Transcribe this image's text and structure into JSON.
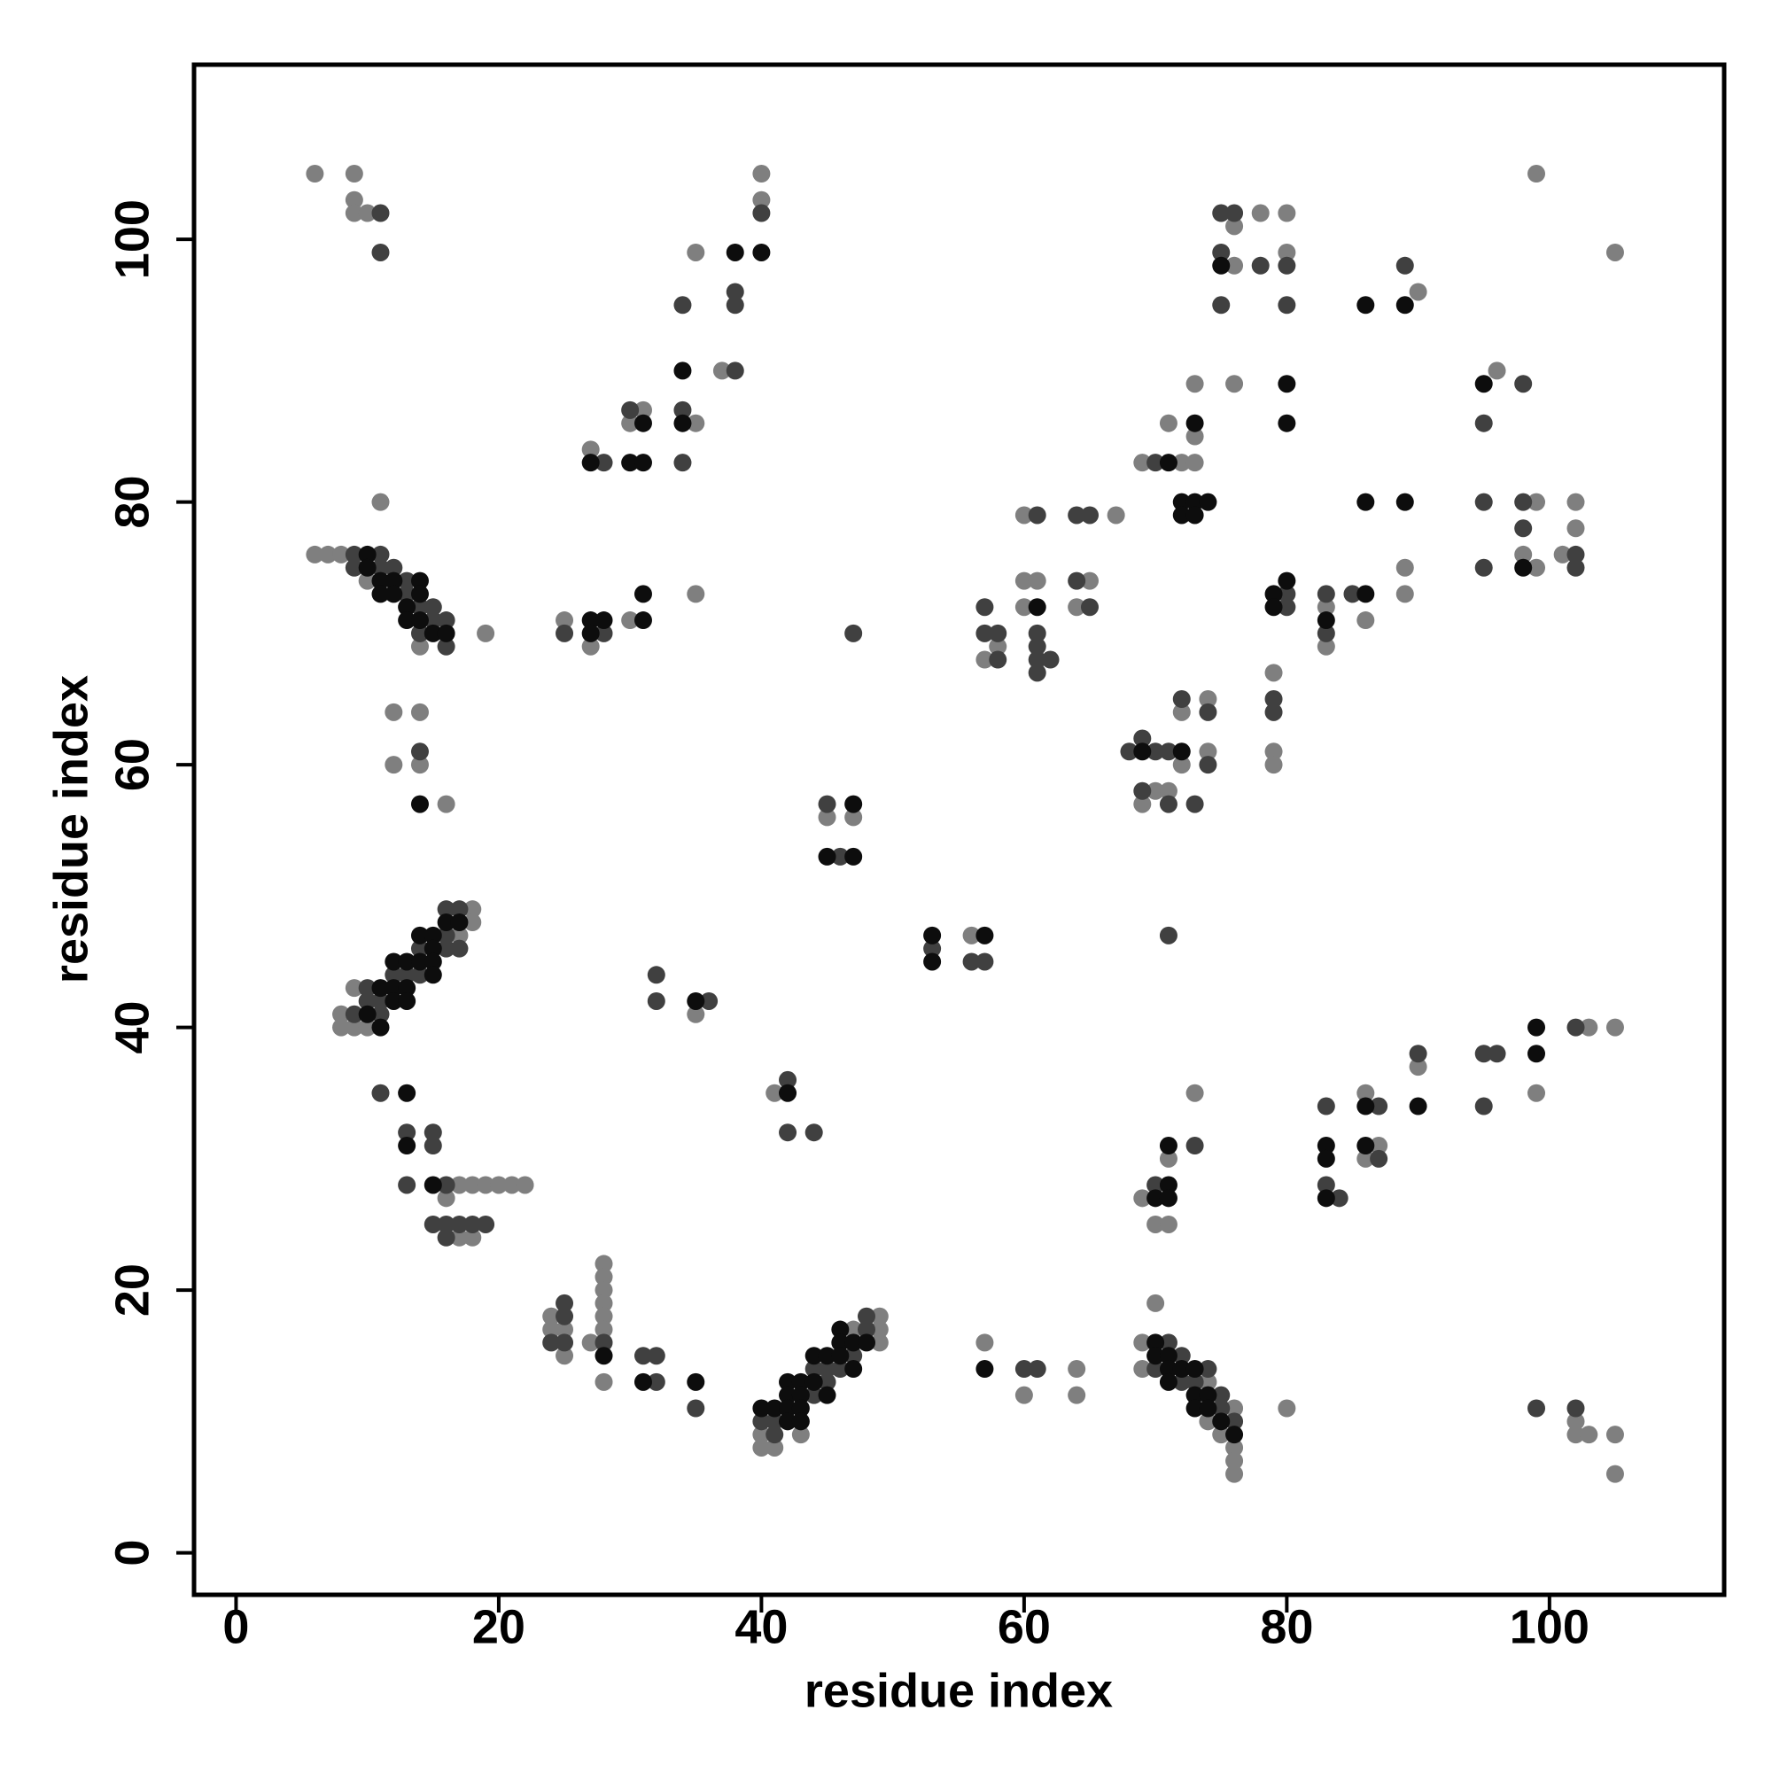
{
  "chart_data": {
    "type": "scatter",
    "x_label": "residue index",
    "y_label": "residue index",
    "xlim": [
      -3.2,
      113.3
    ],
    "ylim": [
      -3.2,
      113.3
    ],
    "xticks": [
      0,
      20,
      40,
      60,
      80,
      100
    ],
    "yticks": [
      0,
      20,
      40,
      60,
      80,
      100
    ],
    "grid": false,
    "series": [
      {
        "color": "#7f7f7f",
        "x": [
          6,
          9,
          9,
          9,
          10,
          11,
          6,
          7,
          8,
          10,
          14,
          19,
          12,
          14,
          12,
          14,
          16,
          8,
          8,
          9,
          9,
          10,
          17,
          18,
          18,
          16,
          17,
          18,
          19,
          20,
          21,
          22,
          17,
          18,
          24,
          24,
          25,
          25,
          27,
          28,
          28,
          28,
          28,
          28,
          28,
          28,
          25,
          27,
          30,
          35,
          27,
          30,
          31,
          35,
          35,
          37,
          40,
          40,
          35,
          41,
          40,
          40,
          41,
          43,
          47,
          49,
          49,
          49,
          45,
          47,
          56,
          57,
          60,
          64,
          64,
          58,
          57,
          60,
          60,
          61,
          60,
          67,
          65,
          64,
          72,
          74,
          74,
          72,
          70,
          71,
          69,
          69,
          72,
          73,
          71,
          73,
          73,
          76,
          76,
          76,
          78,
          80,
          80,
          79,
          79,
          79,
          80,
          83,
          83,
          86,
          90,
          89,
          89,
          96,
          99,
          98,
          99,
          101,
          102,
          102,
          99,
          105,
          86,
          87,
          86,
          90,
          99,
          103,
          105,
          69,
          70,
          71,
          71,
          73,
          69,
          69,
          70,
          74,
          74,
          75,
          76,
          76,
          76,
          76,
          102,
          102,
          103,
          105,
          105
        ],
        "y": [
          105,
          105,
          103,
          102,
          102,
          80,
          76,
          76,
          76,
          74,
          69,
          70,
          64,
          64,
          60,
          60,
          57,
          41,
          40,
          40,
          43,
          40,
          47,
          49,
          48,
          27,
          28,
          28,
          28,
          28,
          28,
          28,
          24,
          24,
          18,
          17,
          17,
          15,
          16,
          22,
          21,
          20,
          19,
          18,
          17,
          13,
          71,
          69,
          71,
          73,
          84,
          86,
          87,
          86,
          99,
          90,
          103,
          105,
          41,
          35,
          9,
          8,
          8,
          9,
          17,
          18,
          17,
          16,
          56,
          56,
          47,
          16,
          12,
          14,
          12,
          69,
          68,
          79,
          74,
          74,
          72,
          79,
          74,
          72,
          60,
          61,
          65,
          64,
          58,
          58,
          57,
          83,
          83,
          83,
          86,
          85,
          89,
          89,
          101,
          98,
          102,
          102,
          99,
          67,
          61,
          60,
          11,
          72,
          69,
          71,
          96,
          75,
          73,
          90,
          80,
          76,
          75,
          76,
          80,
          78,
          105,
          99,
          35,
          31,
          30,
          37,
          35,
          40,
          40,
          27,
          25,
          25,
          30,
          35,
          16,
          14,
          19,
          13,
          10,
          9,
          11,
          8,
          7,
          6,
          10,
          9,
          9,
          9,
          6
        ]
      },
      {
        "color": "#404040",
        "x": [
          11,
          11,
          9,
          11,
          9,
          11,
          12,
          13,
          13,
          14,
          15,
          15,
          14,
          16,
          16,
          14,
          9,
          10,
          10,
          11,
          11,
          12,
          13,
          14,
          14,
          16,
          16,
          16,
          17,
          17,
          11,
          13,
          15,
          15,
          13,
          16,
          15,
          16,
          17,
          18,
          19,
          16,
          24,
          25,
          25,
          25,
          28,
          31,
          32,
          32,
          35,
          25,
          28,
          28,
          30,
          34,
          34,
          34,
          38,
          38,
          38,
          40,
          32,
          32,
          36,
          42,
          42,
          44,
          40,
          41,
          41,
          44,
          44,
          45,
          45,
          46,
          47,
          48,
          48,
          47,
          45,
          46,
          53,
          56,
          57,
          60,
          61,
          57,
          57,
          58,
          58,
          61,
          61,
          61,
          61,
          62,
          61,
          64,
          65,
          64,
          65,
          68,
          69,
          70,
          71,
          74,
          72,
          74,
          69,
          71,
          73,
          71,
          70,
          75,
          76,
          75,
          75,
          78,
          80,
          80,
          80,
          80,
          79,
          79,
          83,
          83,
          85,
          89,
          98,
          95,
          95,
          98,
          98,
          102,
          102,
          95,
          83,
          83,
          84,
          87,
          87,
          90,
          95,
          96,
          95,
          102,
          70,
          73,
          70,
          71,
          72,
          72,
          73,
          74,
          75,
          75,
          76,
          99,
          102
        ],
        "y": [
          102,
          99,
          76,
          76,
          75,
          75,
          75,
          74,
          73,
          72,
          72,
          71,
          70,
          71,
          69,
          61,
          41,
          43,
          42,
          42,
          41,
          44,
          44,
          46,
          44,
          49,
          47,
          46,
          49,
          46,
          35,
          32,
          32,
          31,
          28,
          28,
          25,
          25,
          25,
          25,
          25,
          24,
          16,
          19,
          18,
          16,
          16,
          15,
          15,
          13,
          11,
          70,
          70,
          83,
          87,
          87,
          83,
          95,
          90,
          95,
          96,
          102,
          44,
          42,
          42,
          36,
          32,
          32,
          10,
          10,
          9,
          12,
          14,
          14,
          13,
          14,
          15,
          18,
          17,
          70,
          57,
          53,
          46,
          45,
          45,
          14,
          14,
          72,
          70,
          70,
          68,
          79,
          70,
          69,
          68,
          68,
          67,
          79,
          79,
          74,
          72,
          61,
          62,
          61,
          61,
          60,
          65,
          64,
          58,
          57,
          57,
          47,
          83,
          102,
          102,
          99,
          95,
          98,
          98,
          95,
          73,
          72,
          65,
          64,
          73,
          70,
          73,
          98,
          89,
          86,
          80,
          80,
          78,
          76,
          75,
          75,
          34,
          28,
          27,
          34,
          30,
          38,
          38,
          38,
          34,
          40,
          28,
          31,
          14,
          16,
          15,
          13,
          13,
          14,
          12,
          11,
          10,
          11,
          11
        ]
      },
      {
        "color": "#0d0d0d",
        "x": [
          10,
          10,
          11,
          11,
          12,
          12,
          13,
          14,
          14,
          13,
          14,
          15,
          16,
          14,
          10,
          11,
          11,
          12,
          12,
          12,
          13,
          13,
          13,
          14,
          14,
          15,
          15,
          15,
          15,
          16,
          17,
          13,
          13,
          15,
          28,
          31,
          35,
          27,
          27,
          28,
          31,
          31,
          27,
          31,
          30,
          31,
          34,
          34,
          38,
          40,
          35,
          42,
          40,
          41,
          42,
          42,
          42,
          42,
          43,
          43,
          43,
          43,
          44,
          44,
          45,
          45,
          46,
          46,
          46,
          47,
          47,
          48,
          47,
          45,
          47,
          53,
          53,
          57,
          57,
          61,
          69,
          72,
          71,
          73,
          72,
          73,
          74,
          72,
          73,
          75,
          80,
          80,
          79,
          79,
          80,
          83,
          86,
          86,
          86,
          89,
          89,
          95,
          98,
          83,
          83,
          83,
          86,
          86,
          90,
          99,
          99,
          70,
          71,
          71,
          71,
          70,
          70,
          71,
          71,
          71,
          72,
          73,
          73,
          73,
          74,
          74,
          75,
          76
        ],
        "y": [
          76,
          75,
          74,
          73,
          74,
          73,
          72,
          74,
          73,
          71,
          71,
          70,
          70,
          57,
          41,
          43,
          40,
          43,
          42,
          45,
          45,
          43,
          42,
          47,
          45,
          47,
          46,
          45,
          44,
          48,
          48,
          35,
          31,
          28,
          15,
          13,
          13,
          71,
          70,
          71,
          73,
          71,
          83,
          86,
          83,
          83,
          90,
          86,
          99,
          99,
          42,
          35,
          11,
          11,
          13,
          12,
          11,
          10,
          13,
          12,
          11,
          10,
          15,
          13,
          15,
          12,
          17,
          16,
          15,
          16,
          14,
          16,
          57,
          53,
          53,
          47,
          45,
          47,
          14,
          72,
          61,
          61,
          83,
          86,
          80,
          80,
          80,
          79,
          79,
          98,
          89,
          86,
          73,
          72,
          74,
          71,
          73,
          80,
          95,
          95,
          80,
          89,
          75,
          31,
          30,
          27,
          34,
          31,
          34,
          40,
          38,
          27,
          28,
          27,
          31,
          16,
          15,
          15,
          14,
          13,
          14,
          14,
          12,
          11,
          12,
          11,
          10,
          9
        ]
      }
    ]
  }
}
